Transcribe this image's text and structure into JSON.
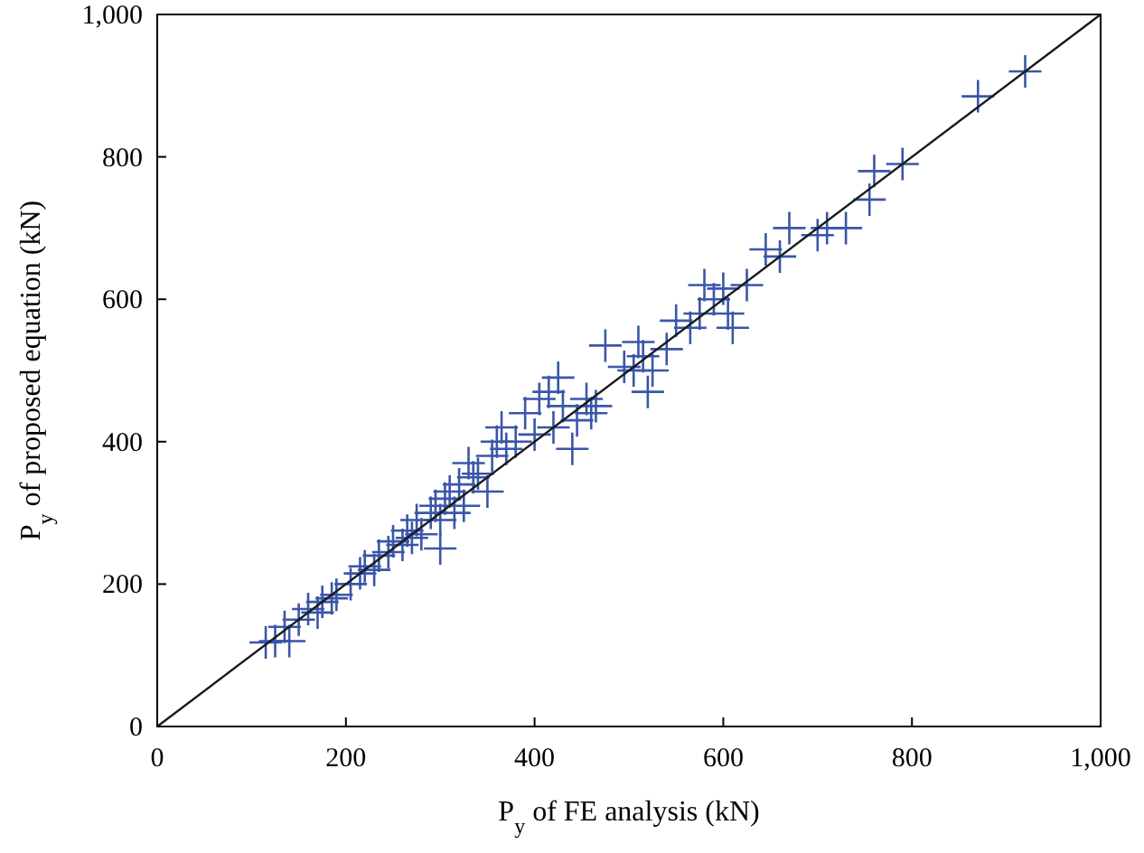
{
  "chart_data": {
    "type": "scatter",
    "xlabel": "P$_{y}$ of FE analysis (kN)",
    "ylabel": "P$_{y}$ of proposed equation (kN)",
    "xlim": [
      0,
      1000
    ],
    "ylim": [
      0,
      1000
    ],
    "xticks": [
      0,
      200,
      400,
      600,
      800,
      {
        "value": 1000,
        "label": "1,000"
      }
    ],
    "yticks": [
      0,
      200,
      400,
      600,
      800,
      {
        "value": 1000,
        "label": "1,000"
      }
    ],
    "marker": "cross",
    "grid": false,
    "series": [
      {
        "color": "#3a56a8",
        "x": [
          115,
          125,
          135,
          140,
          150,
          160,
          170,
          175,
          185,
          190,
          205,
          215,
          220,
          230,
          235,
          245,
          250,
          260,
          265,
          270,
          275,
          280,
          290,
          295,
          300,
          300,
          305,
          310,
          315,
          320,
          325,
          330,
          335,
          340,
          350,
          355,
          360,
          365,
          370,
          380,
          390,
          400,
          405,
          415,
          420,
          425,
          430,
          440,
          445,
          455,
          460,
          465,
          475,
          495,
          505,
          510,
          515,
          520,
          525,
          540,
          550,
          565,
          575,
          580,
          590,
          600,
          605,
          610,
          625,
          645,
          660,
          670,
          700,
          710,
          730,
          755,
          760,
          790,
          870,
          920
        ],
        "values": [
          118,
          120,
          140,
          120,
          150,
          165,
          160,
          175,
          180,
          185,
          200,
          215,
          225,
          220,
          240,
          245,
          260,
          255,
          275,
          265,
          290,
          270,
          300,
          310,
          250,
          290,
          320,
          330,
          300,
          340,
          310,
          370,
          350,
          355,
          330,
          380,
          400,
          420,
          390,
          400,
          440,
          410,
          460,
          470,
          420,
          490,
          450,
          390,
          430,
          460,
          440,
          450,
          535,
          505,
          500,
          540,
          520,
          470,
          500,
          530,
          570,
          560,
          580,
          620,
          600,
          615,
          580,
          560,
          620,
          670,
          660,
          700,
          690,
          700,
          700,
          740,
          780,
          790,
          885,
          920
        ]
      },
      {
        "type": "line",
        "color": "#1a1a1a",
        "marker": "none",
        "x": [
          0,
          1000
        ],
        "values": [
          0,
          1000
        ]
      }
    ]
  }
}
